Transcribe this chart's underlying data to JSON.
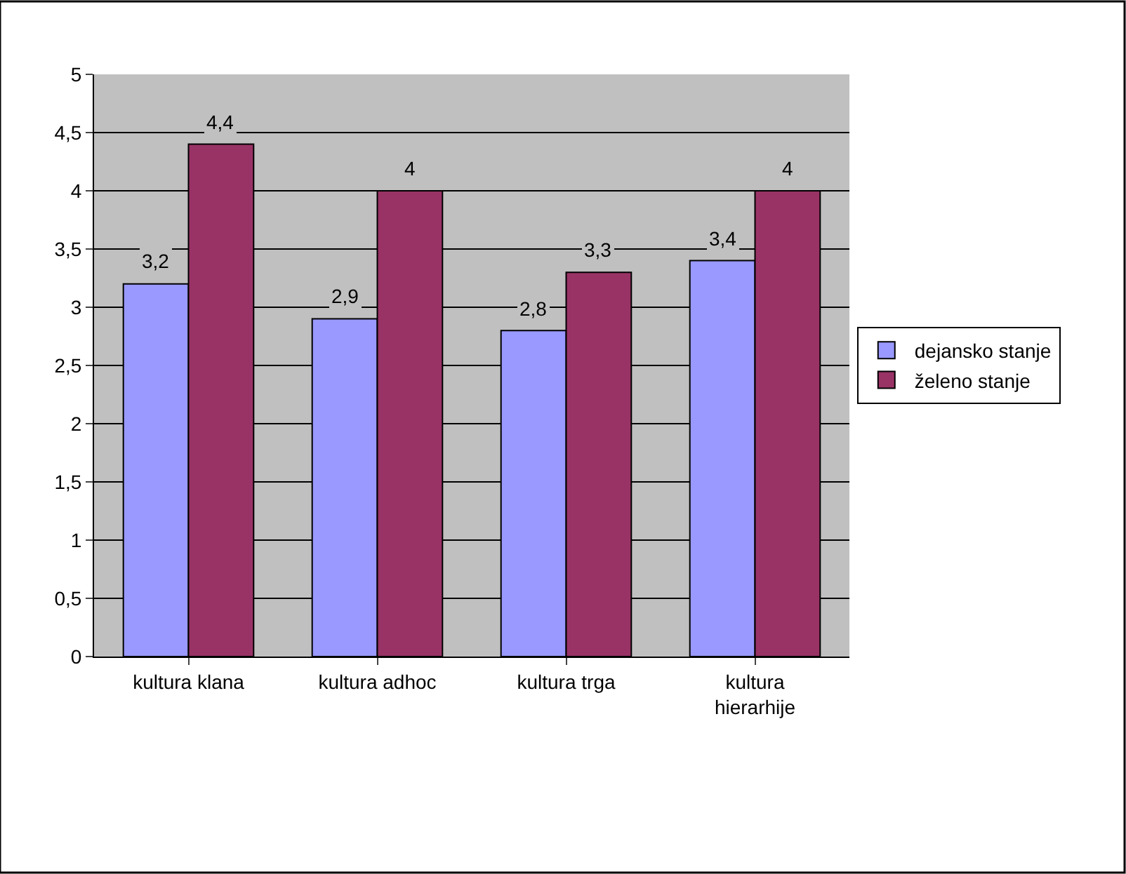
{
  "chart_data": {
    "type": "bar",
    "categories": [
      "kultura klana",
      "kultura adhoc",
      "kultura trga",
      "kultura hierarhije"
    ],
    "series": [
      {
        "name": "dejansko stanje",
        "color": "#9999ff",
        "values": [
          3.2,
          2.9,
          2.8,
          3.4
        ],
        "value_labels": [
          "3,2",
          "2,9",
          "2,8",
          "3,4"
        ]
      },
      {
        "name": "želeno stanje",
        "color": "#993366",
        "values": [
          4.4,
          4,
          3.3,
          4
        ],
        "value_labels": [
          "4,4",
          "4",
          "3,3",
          "4"
        ]
      }
    ],
    "ylim": [
      0,
      5
    ],
    "yticks": [
      0,
      {
        "value": 0.5,
        "label": "0,5"
      },
      1,
      {
        "value": 1.5,
        "label": "1,5"
      },
      2,
      {
        "value": 2.5,
        "label": "2,5"
      },
      3,
      {
        "value": 3.5,
        "label": "3,5"
      },
      4,
      {
        "value": 4.5,
        "label": "4,5"
      },
      5
    ],
    "grid": "y",
    "legend": "right"
  }
}
